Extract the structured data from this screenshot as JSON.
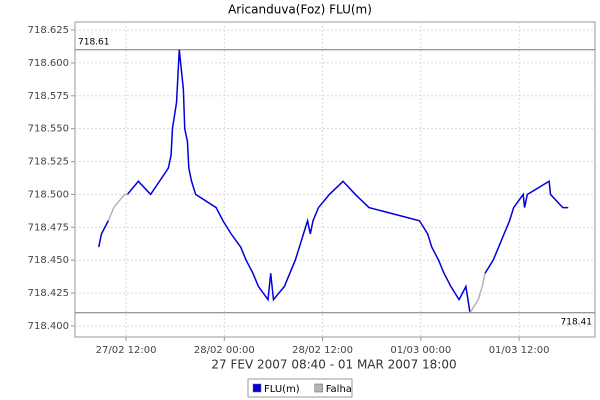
{
  "chart_data": {
    "type": "line",
    "title": "Aricanduva(Foz) FLU(m)",
    "x_label": "27 FEV 2007 08:40 - 01 MAR 2007 18:00",
    "x": [
      "27/02 08:40",
      "27/02 09:00",
      "27/02 09:50",
      "27/02 10:30",
      "27/02 11:50",
      "27/02 12:10",
      "27/02 13:30",
      "27/02 15:00",
      "27/02 17:10",
      "27/02 17:30",
      "27/02 17:40",
      "27/02 18:10",
      "27/02 18:30",
      "27/02 18:40",
      "27/02 19:00",
      "27/02 19:10",
      "27/02 19:30",
      "27/02 19:40",
      "27/02 20:00",
      "27/02 20:30",
      "27/02 23:00",
      "27/02 23:50",
      "28/02 00:50",
      "28/02 02:00",
      "28/02 02:40",
      "28/02 03:30",
      "28/02 04:10",
      "28/02 05:20",
      "28/02 05:40",
      "28/02 06:00",
      "28/02 07:20",
      "28/02 08:00",
      "28/02 08:40",
      "28/02 09:10",
      "28/02 09:40",
      "28/02 10:10",
      "28/02 10:30",
      "28/02 10:50",
      "28/02 11:30",
      "28/02 12:50",
      "28/02 14:30",
      "28/02 16:00",
      "28/02 17:40",
      "28/02 23:50",
      "01/03 00:50",
      "01/03 01:20",
      "01/03 02:10",
      "01/03 02:50",
      "01/03 03:40",
      "01/03 04:40",
      "01/03 05:30",
      "01/03 06:00",
      "01/03 07:00",
      "01/03 07:30",
      "01/03 07:50",
      "01/03 08:50",
      "01/03 09:30",
      "01/03 10:10",
      "01/03 10:50",
      "01/03 11:20",
      "01/03 12:30",
      "01/03 12:40",
      "01/03 13:00",
      "01/03 15:40",
      "01/03 15:50",
      "01/03 17:20",
      "01/03 18:00"
    ],
    "series": [
      {
        "name": "FLU(m)",
        "color": "#0000dd",
        "values": [
          718.46,
          718.47,
          718.48,
          null,
          null,
          718.5,
          718.51,
          718.5,
          718.52,
          718.53,
          718.55,
          718.57,
          718.61,
          718.6,
          718.58,
          718.55,
          718.54,
          718.52,
          718.51,
          718.5,
          718.49,
          718.48,
          718.47,
          718.46,
          718.45,
          718.44,
          718.43,
          718.42,
          718.44,
          718.42,
          718.43,
          718.44,
          718.45,
          718.46,
          718.47,
          718.48,
          718.47,
          718.48,
          718.49,
          718.5,
          718.51,
          718.5,
          718.49,
          718.48,
          718.47,
          718.46,
          718.45,
          718.44,
          718.43,
          718.42,
          718.43,
          718.41,
          null,
          null,
          718.44,
          718.45,
          718.46,
          718.47,
          718.48,
          718.49,
          718.5,
          718.49,
          718.5,
          718.51,
          718.5,
          718.49,
          718.49
        ]
      },
      {
        "name": "Falha",
        "color": "#b4b4b4",
        "values": [
          null,
          null,
          718.48,
          718.49,
          718.5,
          718.5,
          null,
          null,
          null,
          null,
          null,
          null,
          null,
          null,
          null,
          null,
          null,
          null,
          null,
          null,
          null,
          null,
          null,
          null,
          null,
          null,
          null,
          null,
          null,
          null,
          null,
          null,
          null,
          null,
          null,
          null,
          null,
          null,
          null,
          null,
          null,
          null,
          null,
          null,
          null,
          null,
          null,
          null,
          null,
          null,
          null,
          718.41,
          718.42,
          718.43,
          718.44,
          null,
          null,
          null,
          null,
          null,
          null,
          null,
          null,
          null,
          null,
          null,
          null
        ]
      }
    ],
    "markers": [
      718.61,
      718.41
    ],
    "xlim": [
      "27/02 05:46",
      "01/03 21:16"
    ],
    "xticks": [
      "27/02 12:00",
      "28/02 00:00",
      "28/02 12:00",
      "01/03 00:00",
      "01/03 12:00"
    ],
    "ylim": [
      718.3916,
      718.6311
    ],
    "yticks": [
      {
        "value": 718.4,
        "label": "718.400"
      },
      718.425,
      {
        "value": 718.45,
        "label": "718.450"
      },
      718.475,
      {
        "value": 718.5,
        "label": "718.500"
      },
      718.525,
      {
        "value": 718.55,
        "label": "718.550"
      },
      718.575,
      {
        "value": 718.6,
        "label": "718.600"
      },
      718.625
    ],
    "grid": true
  }
}
